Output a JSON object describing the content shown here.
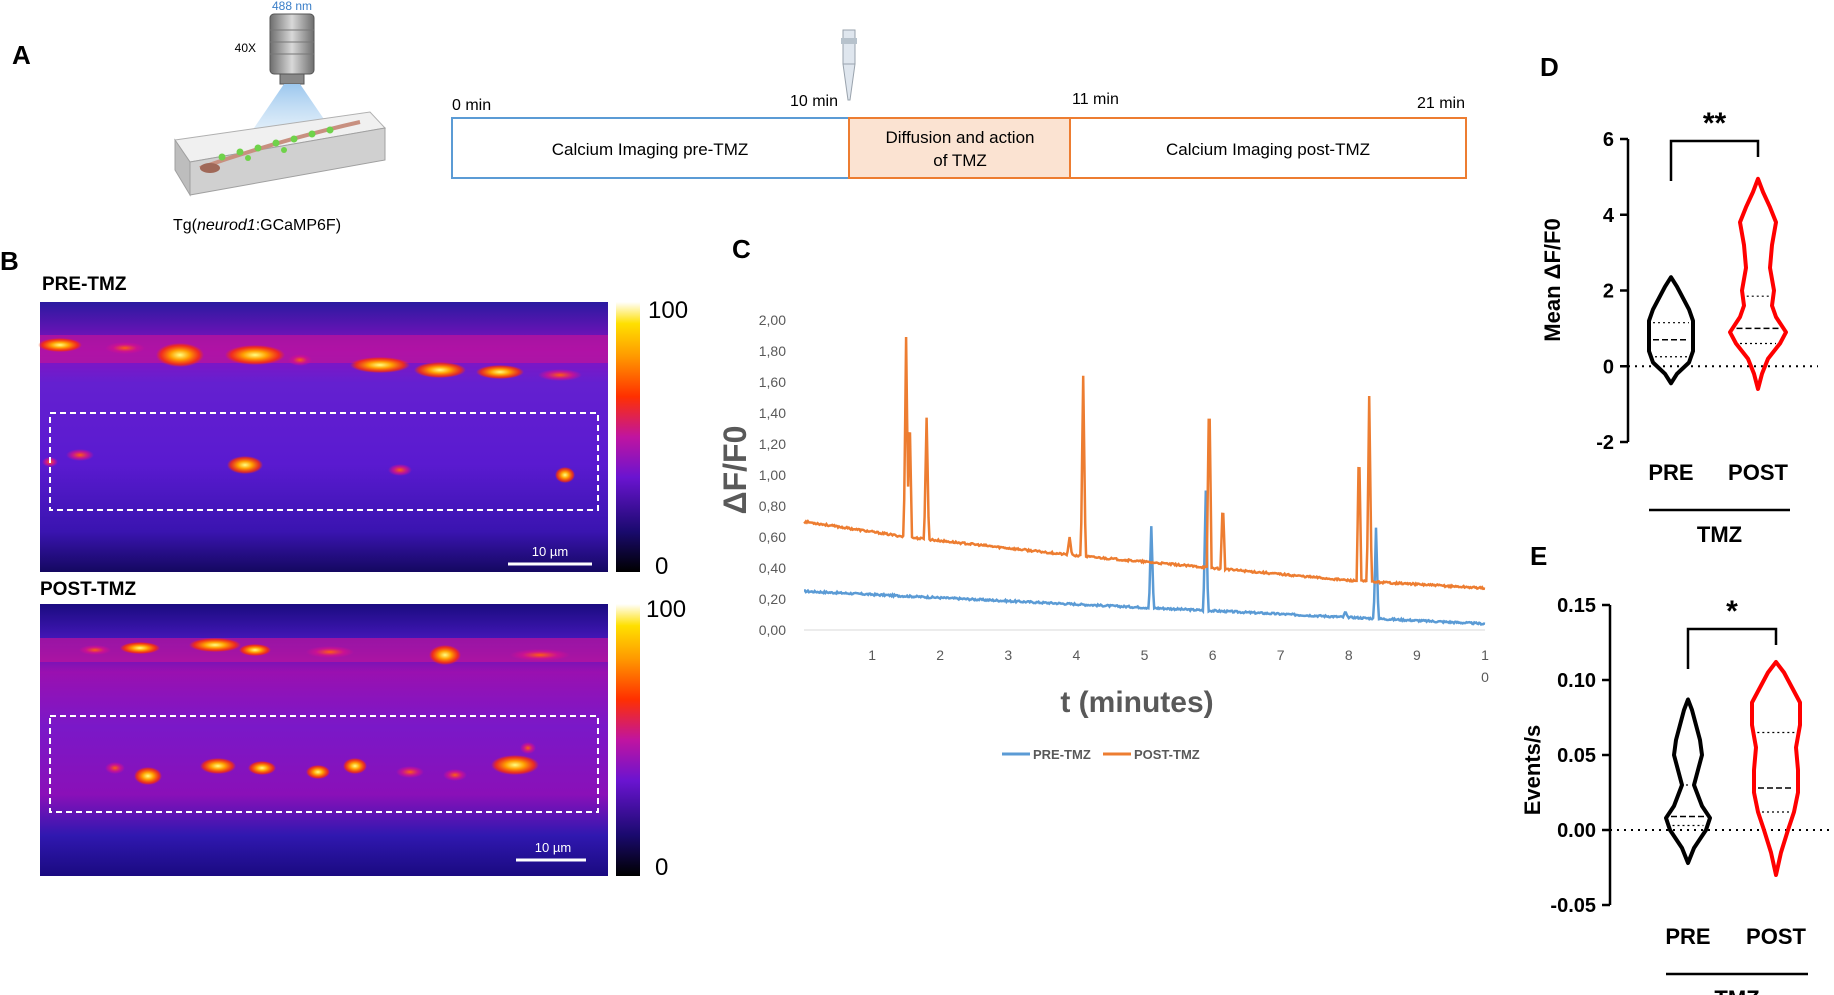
{
  "panel_labels": {
    "A": "A",
    "B": "B",
    "C": "C",
    "D": "D",
    "E": "E"
  },
  "panelA": {
    "wavelength": "488 nm",
    "objective": "40X",
    "transgenic_prefix": "Tg(",
    "transgenic_gene": "neurod1",
    "transgenic_suffix": ":GCaMP6F)",
    "time_0": "0 min",
    "time_10": "10 min",
    "time_11": "11 min",
    "time_21": "21 min",
    "box_pre": "Calcium Imaging pre-TMZ",
    "box_mid_line1": "Diffusion and action",
    "box_mid_line2": "of TMZ",
    "box_post": "Calcium Imaging post-TMZ"
  },
  "panelB": {
    "pre_title": "PRE-TMZ",
    "post_title": "POST-TMZ",
    "scale_label": "10 µm",
    "colorbar_max": "100",
    "colorbar_min": "0"
  },
  "colors": {
    "pre": "#5b9bd5",
    "post": "#ed7d31",
    "violin_post": "#ff0000",
    "violin_pre": "#000000"
  },
  "chart_data": [
    {
      "type": "line",
      "panel": "C",
      "ylabel": "ΔF/F0",
      "xlabel": "t (minutes)",
      "ylim": [
        0,
        2.0
      ],
      "xlim": [
        0,
        10
      ],
      "yticks": [
        "0,00",
        "0,20",
        "0,40",
        "0,60",
        "0,80",
        "1,00",
        "1,20",
        "1,40",
        "1,60",
        "1,80",
        "2,00"
      ],
      "xticks": [
        "1",
        "2",
        "3",
        "4",
        "5",
        "6",
        "7",
        "8",
        "9",
        "1"
      ],
      "xtick_last_sub": "0",
      "legend": [
        "PRE-TMZ",
        "POST-TMZ"
      ],
      "legend_position": "bottom",
      "series": [
        {
          "name": "PRE-TMZ",
          "baseline": [
            [
              0,
              0.25
            ],
            [
              10,
              0.04
            ]
          ],
          "peaks": [
            [
              5.1,
              0.67
            ],
            [
              5.9,
              0.9
            ],
            [
              8.4,
              0.66
            ],
            [
              7.95,
              0.12
            ]
          ]
        },
        {
          "name": "POST-TMZ",
          "baseline": [
            [
              0,
              0.7
            ],
            [
              1.5,
              0.6
            ],
            [
              4,
              0.48
            ],
            [
              6,
              0.4
            ],
            [
              8,
              0.32
            ],
            [
              10,
              0.27
            ]
          ],
          "peaks": [
            [
              1.5,
              1.89
            ],
            [
              1.55,
              1.44
            ],
            [
              1.8,
              1.37
            ],
            [
              3.9,
              0.6
            ],
            [
              4.1,
              1.64
            ],
            [
              5.95,
              1.6
            ],
            [
              6.15,
              0.84
            ],
            [
              8.15,
              1.23
            ],
            [
              8.3,
              1.51
            ]
          ]
        }
      ]
    },
    {
      "type": "violin",
      "panel": "D",
      "ylabel": "Mean ΔF/F0",
      "categories": [
        "PRE",
        "POST"
      ],
      "group_label": "TMZ",
      "ylim": [
        -2,
        6
      ],
      "yticks": [
        "-2",
        "0",
        "2",
        "4",
        "6"
      ],
      "significance": "**",
      "medians": [
        0.7,
        1.0
      ],
      "quartiles": [
        [
          0.25,
          1.15
        ],
        [
          0.6,
          1.85
        ]
      ],
      "ranges": [
        [
          -0.45,
          2.35
        ],
        [
          -0.6,
          4.95
        ]
      ]
    },
    {
      "type": "violin",
      "panel": "E",
      "ylabel": "Events/s",
      "categories": [
        "PRE",
        "POST"
      ],
      "group_label": "TMZ",
      "ylim": [
        -0.05,
        0.15
      ],
      "yticks": [
        "-0.05",
        "0.00",
        "0.05",
        "0.10",
        "0.15"
      ],
      "significance": "*",
      "medians": [
        0.009,
        0.028
      ],
      "quartiles": [
        [
          0.003,
          0.03
        ],
        [
          0.012,
          0.065
        ]
      ],
      "ranges": [
        [
          -0.022,
          0.087
        ],
        [
          -0.03,
          0.112
        ]
      ]
    }
  ]
}
